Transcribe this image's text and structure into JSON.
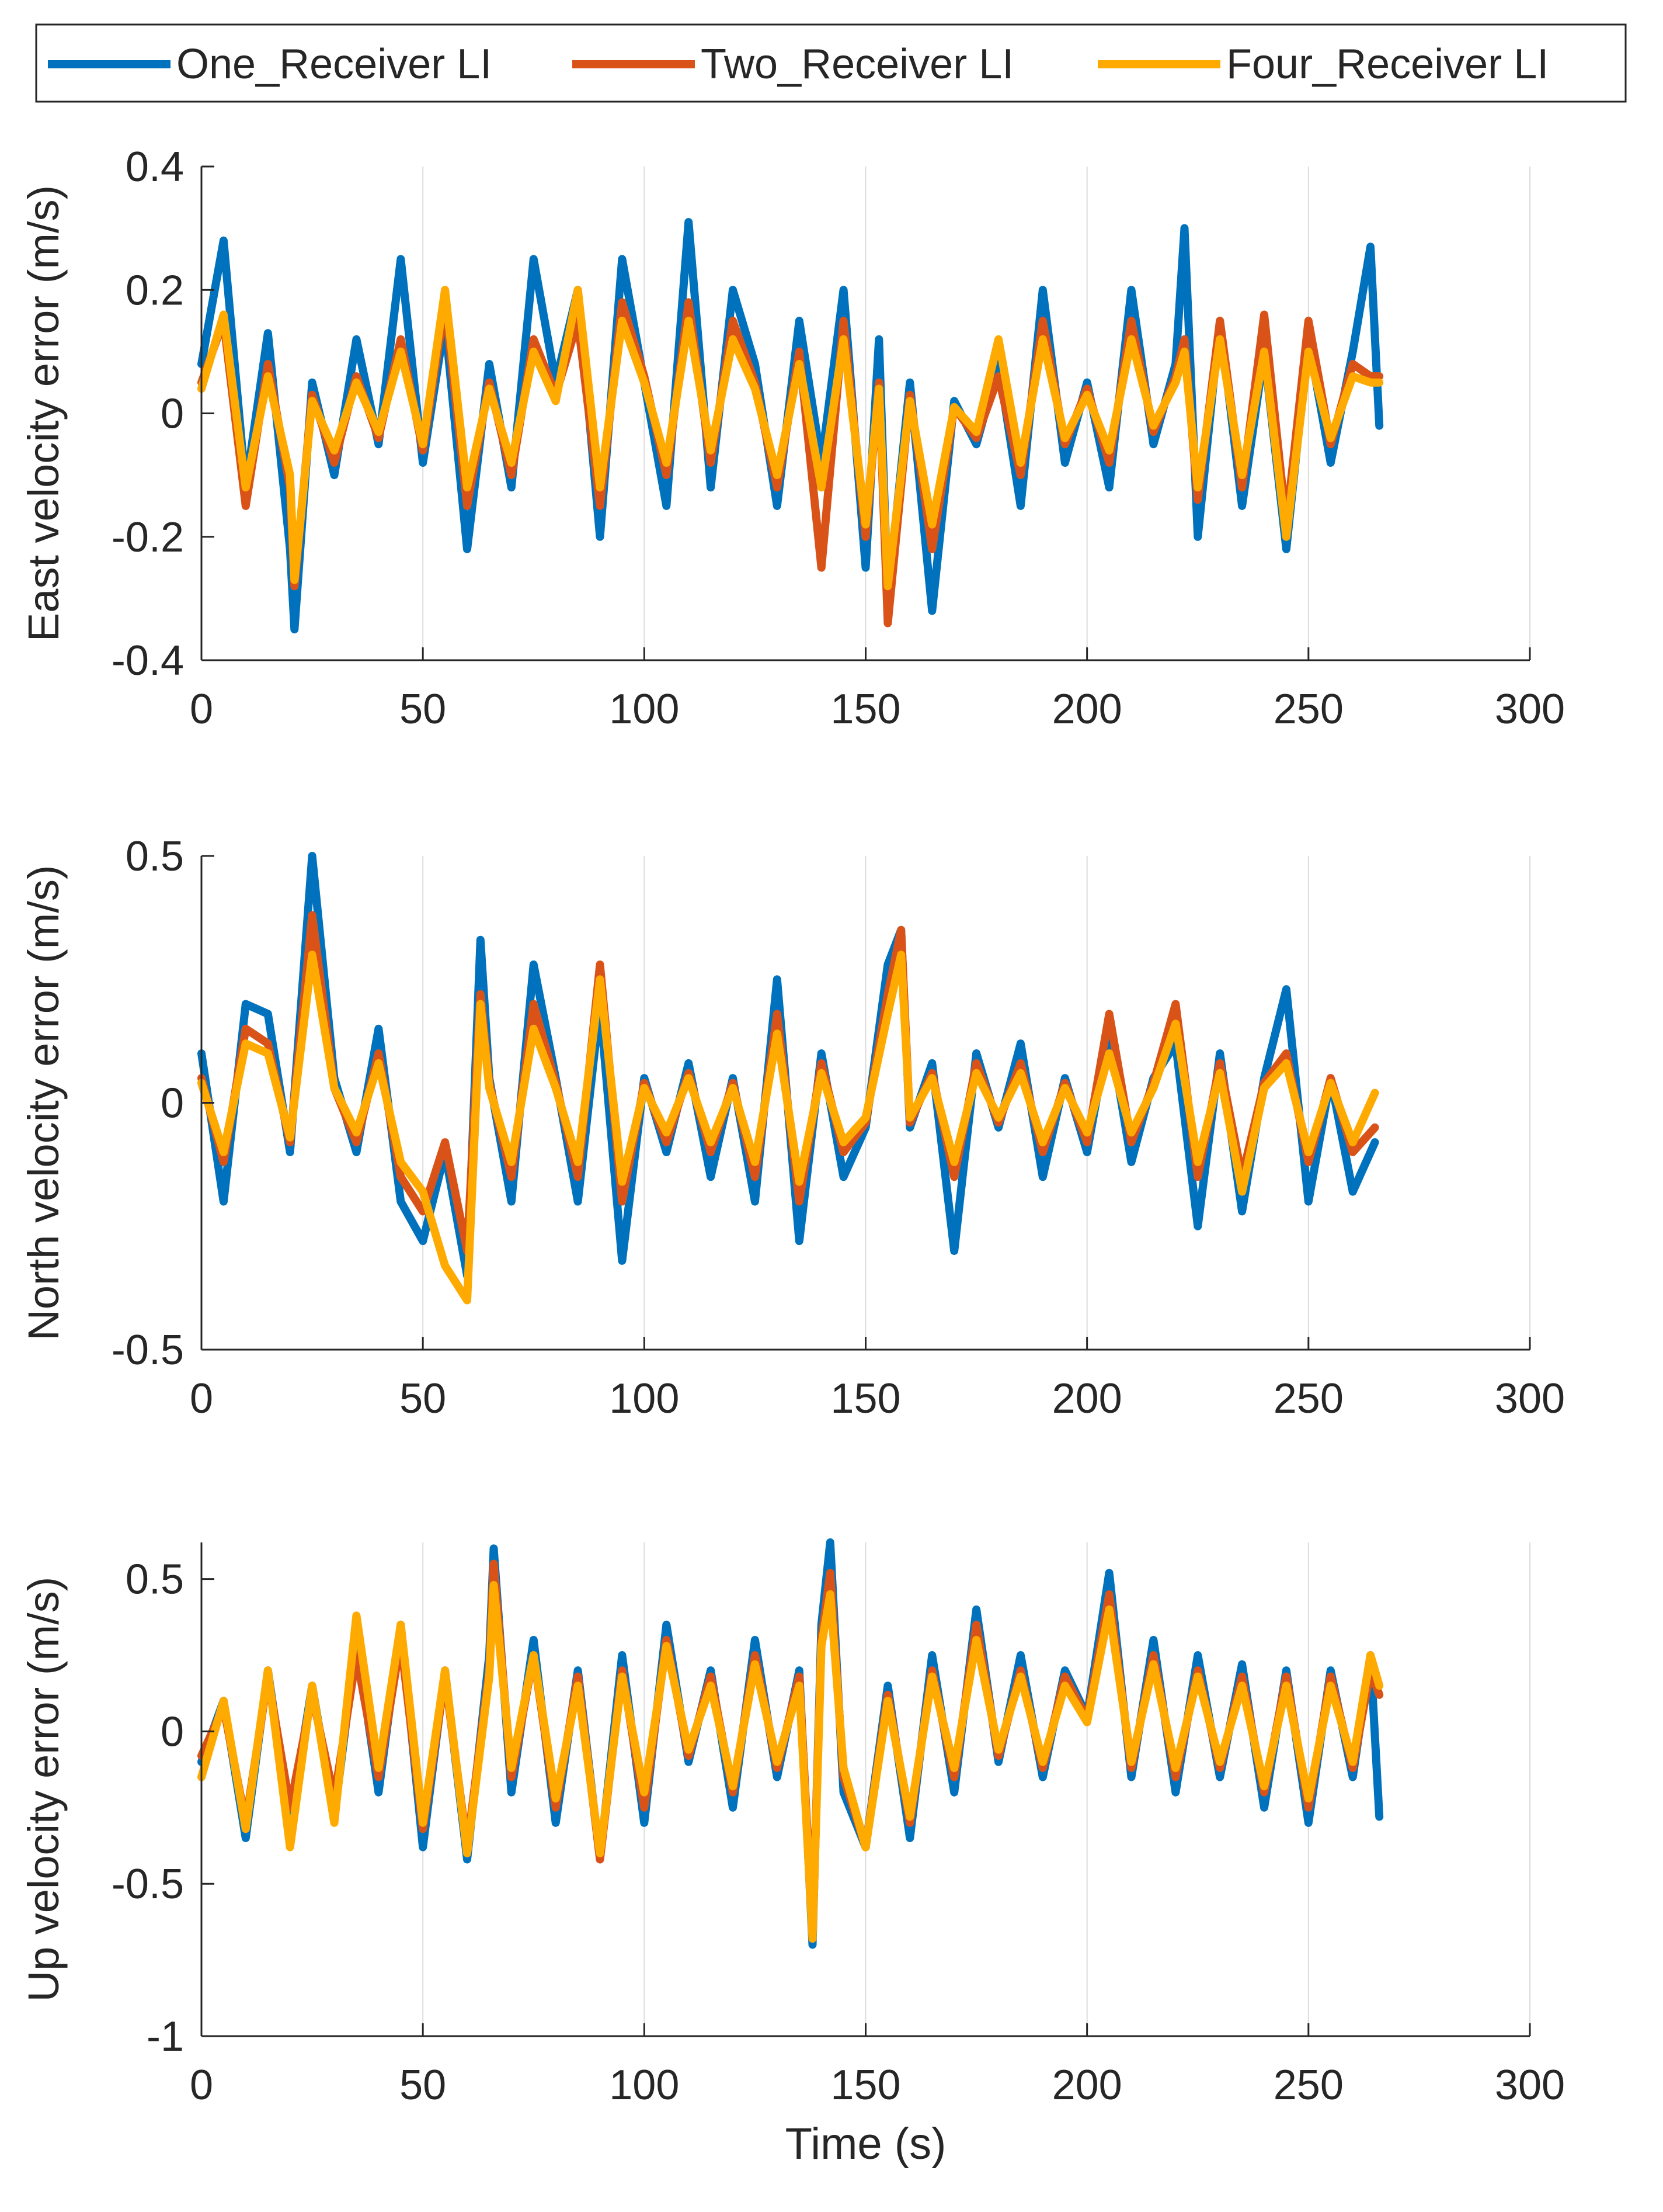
{
  "legend": {
    "entries": [
      {
        "label": "One_Receiver LI",
        "color": "#0072BD"
      },
      {
        "label": "Two_Receiver LI",
        "color": "#D95319"
      },
      {
        "label": "Four_Receiver LI",
        "color": "#FFAA00"
      }
    ]
  },
  "chart_data": [
    {
      "type": "line",
      "title": "",
      "xlabel": "",
      "ylabel": "East velocity error (m/s)",
      "xlim": [
        0,
        300
      ],
      "ylim": [
        -0.4,
        0.4
      ],
      "xticks": [
        0,
        50,
        100,
        150,
        200,
        250,
        300
      ],
      "xtick_labels": [
        "0",
        "50",
        "100",
        "150",
        "200",
        "250",
        "300"
      ],
      "yticks": [
        -0.4,
        -0.2,
        0,
        0.2,
        0.4
      ],
      "ytick_labels": [
        "-0.4",
        "-0.2",
        "0",
        "0.2",
        "0.4"
      ],
      "grid": "x",
      "x": [
        0,
        5,
        10,
        15,
        20,
        21,
        25,
        30,
        35,
        40,
        45,
        50,
        55,
        60,
        65,
        70,
        75,
        80,
        85,
        90,
        95,
        100,
        105,
        110,
        115,
        120,
        125,
        130,
        135,
        140,
        145,
        150,
        153,
        155,
        160,
        165,
        170,
        175,
        180,
        185,
        190,
        195,
        200,
        205,
        210,
        215,
        220,
        222,
        225,
        230,
        235,
        240,
        245,
        250,
        255,
        260,
        264,
        266
      ],
      "series": [
        {
          "name": "One_Receiver LI",
          "values": [
            0.08,
            0.28,
            -0.12,
            0.13,
            -0.22,
            -0.35,
            0.05,
            -0.1,
            0.12,
            -0.05,
            0.25,
            -0.08,
            0.15,
            -0.22,
            0.08,
            -0.12,
            0.25,
            0.05,
            0.2,
            -0.2,
            0.25,
            0.05,
            -0.15,
            0.31,
            -0.12,
            0.2,
            0.08,
            -0.15,
            0.15,
            -0.08,
            0.2,
            -0.25,
            0.12,
            -0.3,
            0.05,
            -0.32,
            0.02,
            -0.05,
            0.08,
            -0.15,
            0.2,
            -0.08,
            0.05,
            -0.12,
            0.2,
            -0.05,
            0.08,
            0.3,
            -0.2,
            0.15,
            -0.15,
            0.1,
            -0.22,
            0.12,
            -0.08,
            0.1,
            0.27,
            -0.02
          ]
        },
        {
          "name": "Two_Receiver LI",
          "values": [
            0.05,
            0.15,
            -0.15,
            0.08,
            -0.12,
            -0.28,
            0.03,
            -0.08,
            0.06,
            -0.04,
            0.12,
            -0.06,
            0.18,
            -0.15,
            0.05,
            -0.1,
            0.12,
            0.03,
            0.15,
            -0.15,
            0.18,
            0.06,
            -0.1,
            0.18,
            -0.08,
            0.15,
            0.05,
            -0.12,
            0.1,
            -0.25,
            0.15,
            -0.2,
            0.05,
            -0.34,
            0.03,
            -0.22,
            0.01,
            -0.04,
            0.06,
            -0.1,
            0.15,
            -0.05,
            0.04,
            -0.08,
            0.15,
            -0.03,
            0.06,
            0.12,
            -0.14,
            0.15,
            -0.12,
            0.16,
            -0.18,
            0.15,
            -0.05,
            0.08,
            0.06,
            0.06
          ]
        },
        {
          "name": "Four_Receiver LI",
          "values": [
            0.04,
            0.16,
            -0.12,
            0.06,
            -0.1,
            -0.27,
            0.02,
            -0.06,
            0.05,
            -0.03,
            0.1,
            -0.05,
            0.2,
            -0.12,
            0.04,
            -0.08,
            0.1,
            0.02,
            0.2,
            -0.12,
            0.15,
            0.05,
            -0.08,
            0.15,
            -0.06,
            0.12,
            0.04,
            -0.1,
            0.08,
            -0.12,
            0.12,
            -0.18,
            0.04,
            -0.28,
            0.02,
            -0.18,
            0.01,
            -0.03,
            0.12,
            -0.08,
            0.12,
            -0.04,
            0.03,
            -0.06,
            0.12,
            -0.02,
            0.05,
            0.1,
            -0.12,
            0.12,
            -0.1,
            0.1,
            -0.2,
            0.1,
            -0.04,
            0.06,
            0.05,
            0.05
          ]
        }
      ]
    },
    {
      "type": "line",
      "title": "",
      "xlabel": "",
      "ylabel": "North velocity error (m/s)",
      "xlim": [
        0,
        300
      ],
      "ylim": [
        -0.5,
        0.5
      ],
      "xticks": [
        0,
        50,
        100,
        150,
        200,
        250,
        300
      ],
      "xtick_labels": [
        "0",
        "50",
        "100",
        "150",
        "200",
        "250",
        "300"
      ],
      "yticks": [
        -0.5,
        0,
        0.5
      ],
      "ytick_labels": [
        "-0.5",
        "0",
        "0.5"
      ],
      "grid": "x",
      "x": [
        0,
        5,
        10,
        15,
        20,
        25,
        30,
        35,
        40,
        45,
        50,
        55,
        60,
        63,
        65,
        70,
        75,
        80,
        85,
        90,
        95,
        100,
        105,
        110,
        115,
        120,
        125,
        130,
        135,
        140,
        145,
        150,
        155,
        158,
        160,
        165,
        170,
        175,
        180,
        185,
        190,
        195,
        200,
        205,
        210,
        215,
        220,
        225,
        230,
        235,
        240,
        245,
        250,
        255,
        260,
        265
      ],
      "series": [
        {
          "name": "One_Receiver LI",
          "values": [
            0.1,
            -0.2,
            0.2,
            0.18,
            -0.1,
            0.5,
            0.05,
            -0.1,
            0.15,
            -0.2,
            -0.28,
            -0.1,
            -0.35,
            0.33,
            0.05,
            -0.2,
            0.28,
            0.05,
            -0.2,
            0.2,
            -0.32,
            0.05,
            -0.1,
            0.08,
            -0.15,
            0.05,
            -0.2,
            0.25,
            -0.28,
            0.1,
            -0.15,
            -0.05,
            0.28,
            0.35,
            -0.05,
            0.08,
            -0.3,
            0.1,
            -0.05,
            0.12,
            -0.15,
            0.05,
            -0.1,
            0.15,
            -0.12,
            0.05,
            0.12,
            -0.25,
            0.1,
            -0.22,
            0.05,
            0.23,
            -0.2,
            0.05,
            -0.18,
            -0.08
          ]
        },
        {
          "name": "Two_Receiver LI",
          "values": [
            0.05,
            -0.12,
            0.15,
            0.12,
            -0.08,
            0.38,
            0.03,
            -0.08,
            0.1,
            -0.15,
            -0.22,
            -0.08,
            -0.3,
            0.22,
            0.04,
            -0.15,
            0.2,
            0.04,
            -0.15,
            0.28,
            -0.2,
            0.04,
            -0.08,
            0.06,
            -0.1,
            0.04,
            -0.15,
            0.18,
            -0.2,
            0.08,
            -0.1,
            -0.04,
            0.22,
            0.35,
            -0.04,
            0.06,
            -0.15,
            0.08,
            -0.04,
            0.08,
            -0.1,
            0.04,
            -0.08,
            0.18,
            -0.08,
            0.04,
            0.2,
            -0.15,
            0.08,
            -0.15,
            0.04,
            0.1,
            -0.12,
            0.05,
            -0.1,
            -0.05
          ]
        },
        {
          "name": "Four_Receiver LI",
          "values": [
            0.04,
            -0.1,
            0.12,
            0.1,
            -0.07,
            0.3,
            0.03,
            -0.06,
            0.08,
            -0.12,
            -0.18,
            -0.33,
            -0.4,
            0.2,
            0.03,
            -0.12,
            0.15,
            0.03,
            -0.12,
            0.25,
            -0.16,
            0.03,
            -0.06,
            0.05,
            -0.08,
            0.03,
            -0.12,
            0.14,
            -0.16,
            0.06,
            -0.08,
            -0.03,
            0.18,
            0.3,
            -0.03,
            0.05,
            -0.12,
            0.06,
            -0.03,
            0.06,
            -0.08,
            0.03,
            -0.06,
            0.1,
            -0.06,
            0.03,
            0.16,
            -0.12,
            0.06,
            -0.18,
            0.03,
            0.08,
            -0.1,
            0.04,
            -0.08,
            0.02
          ]
        }
      ]
    },
    {
      "type": "line",
      "title": "",
      "xlabel": "Time (s)",
      "ylabel": "Up velocity error (m/s)",
      "xlim": [
        0,
        300
      ],
      "ylim": [
        -1,
        0.62
      ],
      "xticks": [
        0,
        50,
        100,
        150,
        200,
        250,
        300
      ],
      "xtick_labels": [
        "0",
        "50",
        "100",
        "150",
        "200",
        "250",
        "300"
      ],
      "yticks": [
        -1,
        -0.5,
        0,
        0.5
      ],
      "ytick_labels": [
        "-1",
        "-0.5",
        "0",
        "0.5"
      ],
      "grid": "x",
      "x": [
        0,
        5,
        10,
        15,
        20,
        25,
        30,
        35,
        40,
        45,
        50,
        55,
        60,
        65,
        66,
        70,
        75,
        80,
        85,
        90,
        95,
        100,
        105,
        110,
        115,
        120,
        125,
        130,
        135,
        138,
        140,
        142,
        145,
        150,
        155,
        160,
        165,
        170,
        175,
        180,
        185,
        190,
        195,
        200,
        205,
        210,
        215,
        220,
        225,
        230,
        235,
        240,
        245,
        250,
        255,
        260,
        264,
        266
      ],
      "series": [
        {
          "name": "One_Receiver LI",
          "values": [
            -0.1,
            0.1,
            -0.35,
            0.2,
            -0.3,
            0.15,
            -0.28,
            0.3,
            -0.2,
            0.35,
            -0.38,
            0.2,
            -0.42,
            0.25,
            0.6,
            -0.2,
            0.3,
            -0.3,
            0.2,
            -0.42,
            0.25,
            -0.3,
            0.35,
            -0.1,
            0.2,
            -0.25,
            0.3,
            -0.15,
            0.2,
            -0.7,
            0.35,
            0.62,
            -0.2,
            -0.38,
            0.15,
            -0.35,
            0.25,
            -0.2,
            0.4,
            -0.1,
            0.25,
            -0.15,
            0.2,
            0.05,
            0.52,
            -0.15,
            0.3,
            -0.2,
            0.25,
            -0.15,
            0.22,
            -0.25,
            0.2,
            -0.3,
            0.2,
            -0.15,
            0.25,
            -0.28
          ]
        },
        {
          "name": "Two_Receiver LI",
          "values": [
            -0.08,
            0.08,
            -0.3,
            0.18,
            -0.25,
            0.12,
            -0.22,
            0.25,
            -0.15,
            0.3,
            -0.32,
            0.18,
            -0.38,
            0.2,
            0.55,
            -0.15,
            0.25,
            -0.25,
            0.18,
            -0.42,
            0.2,
            -0.25,
            0.3,
            -0.08,
            0.18,
            -0.2,
            0.25,
            -0.12,
            0.18,
            -0.65,
            0.3,
            0.52,
            -0.15,
            -0.38,
            0.12,
            -0.3,
            0.2,
            -0.15,
            0.35,
            -0.08,
            0.2,
            -0.12,
            0.18,
            0.04,
            0.45,
            -0.12,
            0.25,
            -0.15,
            0.2,
            -0.12,
            0.18,
            -0.2,
            0.18,
            -0.25,
            0.18,
            -0.12,
            0.2,
            0.12
          ]
        },
        {
          "name": "Four_Receiver LI",
          "values": [
            -0.15,
            0.1,
            -0.32,
            0.2,
            -0.38,
            0.15,
            -0.3,
            0.38,
            -0.12,
            0.35,
            -0.3,
            0.2,
            -0.4,
            0.18,
            0.48,
            -0.12,
            0.25,
            -0.22,
            0.15,
            -0.4,
            0.18,
            -0.2,
            0.28,
            -0.06,
            0.15,
            -0.18,
            0.22,
            -0.1,
            0.15,
            -0.68,
            0.28,
            0.45,
            -0.12,
            -0.38,
            0.1,
            -0.28,
            0.18,
            -0.12,
            0.3,
            -0.06,
            0.18,
            -0.1,
            0.15,
            0.03,
            0.4,
            -0.1,
            0.22,
            -0.12,
            0.18,
            -0.1,
            0.15,
            -0.18,
            0.15,
            -0.22,
            0.15,
            -0.1,
            0.25,
            0.15
          ]
        }
      ]
    }
  ]
}
